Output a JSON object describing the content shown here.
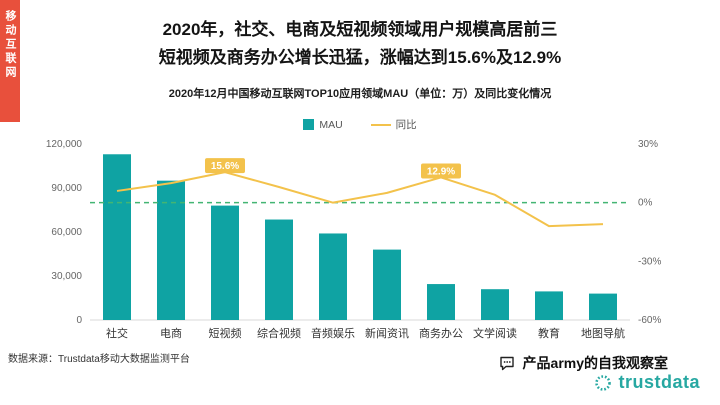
{
  "palette": {
    "strip": "#e8503c",
    "bar": "#0fa3a3",
    "line": "#f3c24b",
    "zero_line": "#43b573",
    "logo": "#27a8a2",
    "axis_line": "#d9d9d9"
  },
  "sidebar": {
    "label": "移动互联网"
  },
  "header": {
    "title_line1": "2020年，社交、电商及短视频领域用户规模高居前三",
    "title_line2": "短视频及商务办公增长迅猛，涨幅达到15.6%及12.9%",
    "subtitle": "2020年12月中国移动互联网TOP10应用领域MAU（单位：万）及同比变化情况"
  },
  "legend": {
    "mau_label": "MAU",
    "yoy_label": "同比"
  },
  "chart_data": {
    "type": "bar",
    "subtype": "bar+line combo with dual y-axes",
    "title": "2020年12月中国移动互联网TOP10应用领域MAU（单位：万）及同比变化情况",
    "categories": [
      "社交",
      "电商",
      "短视频",
      "综合视频",
      "音频娱乐",
      "新闻资讯",
      "商务办公",
      "文学阅读",
      "教育",
      "地图导航"
    ],
    "series": [
      {
        "name": "MAU",
        "type": "bar",
        "axis": "left",
        "values": [
          113000,
          95000,
          78000,
          68500,
          59000,
          48000,
          24500,
          21000,
          19500,
          18000
        ]
      },
      {
        "name": "同比",
        "type": "line",
        "axis": "right",
        "values": [
          6,
          10,
          15.6,
          8,
          0,
          5,
          12.9,
          4,
          -12,
          -11
        ]
      }
    ],
    "left_axis": {
      "min": 0,
      "max": 120000,
      "tick_values": [
        0,
        30000,
        60000,
        90000,
        120000
      ],
      "tick_labels": [
        "0",
        "30,000",
        "60,000",
        "90,000",
        "120,000"
      ]
    },
    "right_axis": {
      "min": -60,
      "max": 30,
      "tick_values": [
        -60,
        -30,
        0,
        30
      ],
      "tick_labels": [
        "-60%",
        "-30%",
        "0%",
        "30%"
      ]
    },
    "zero_line": {
      "at_percent": 0,
      "style": "dashed"
    },
    "annotations": [
      {
        "index": 2,
        "text": "15.6%"
      },
      {
        "index": 6,
        "text": "12.9%"
      }
    ],
    "grid": false,
    "legend_position": "top"
  },
  "footer": {
    "source": "数据来源：Trustdata移动大数据监测平台",
    "account_name": "产品army的自我观察室",
    "watermark": "trustdata"
  }
}
